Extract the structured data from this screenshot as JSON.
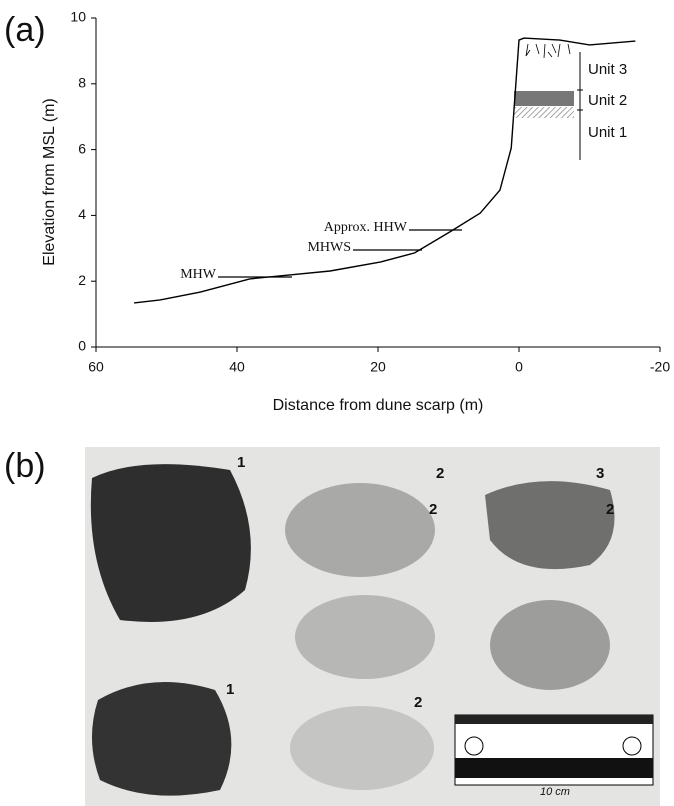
{
  "panel_labels": [
    "(a)",
    "(b)"
  ],
  "chart_data": {
    "type": "line",
    "x_label": "Distance from dune scarp (m)",
    "y_label": "Elevation from MSL (m)",
    "x": [
      54.6,
      50.9,
      45.2,
      38.2,
      32.5,
      26.8,
      19.7,
      14.8,
      9.8,
      5.5,
      2.7,
      1.1,
      0,
      -0.7,
      -5.8,
      -10,
      -16.5
    ],
    "values": [
      1.34,
      1.43,
      1.67,
      2.07,
      2.19,
      2.31,
      2.58,
      2.86,
      3.5,
      4.07,
      4.77,
      6.05,
      9.33,
      9.39,
      9.33,
      9.18,
      9.3
    ],
    "color": "#000000",
    "xlim": [
      60,
      -20
    ],
    "xticks": [
      60,
      40,
      20,
      0,
      -20
    ],
    "ylim": [
      0,
      10
    ],
    "yticks": [
      0,
      2,
      4,
      6,
      8,
      10
    ],
    "annotations": [
      "Approx. HHW",
      "MHWS",
      "MHW"
    ],
    "units": [
      "Unit 3",
      "Unit 2",
      "Unit 1"
    ]
  },
  "photo": {
    "labels": [
      "1",
      "2",
      "3",
      "2",
      "2",
      "1",
      "2"
    ],
    "scale_label": "10 cm"
  }
}
